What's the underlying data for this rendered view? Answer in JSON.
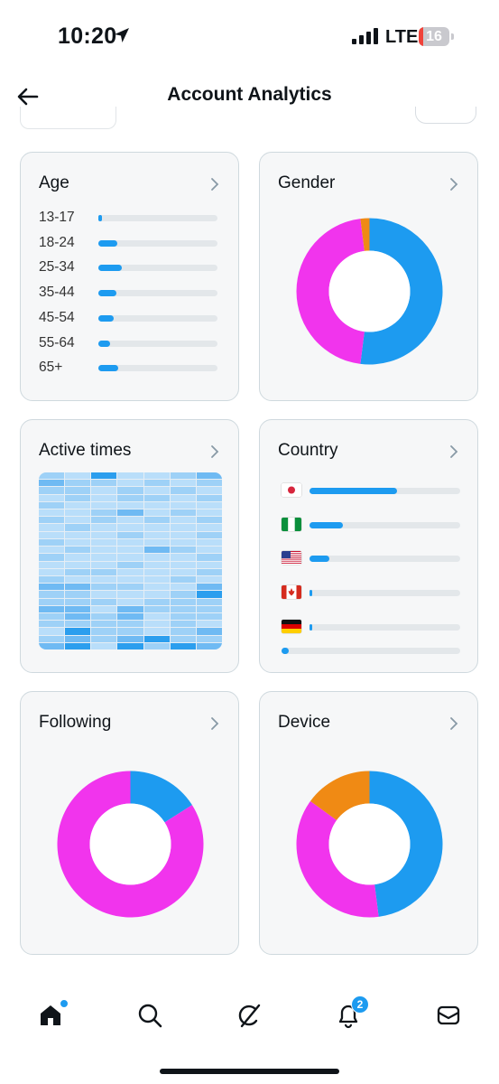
{
  "status_bar": {
    "time": "10:20",
    "network": "LTE",
    "battery": "16"
  },
  "header": {
    "title": "Account Analytics"
  },
  "cards": {
    "age": {
      "title": "Age",
      "rows": [
        {
          "label": "13-17",
          "value": 0.03
        },
        {
          "label": "18-24",
          "value": 0.16
        },
        {
          "label": "25-34",
          "value": 0.2
        },
        {
          "label": "35-44",
          "value": 0.15
        },
        {
          "label": "45-54",
          "value": 0.13
        },
        {
          "label": "55-64",
          "value": 0.1
        },
        {
          "label": "65+",
          "value": 0.17
        }
      ]
    },
    "gender": {
      "title": "Gender",
      "segments": [
        {
          "value": 0.52,
          "color": "#1d9bf0"
        },
        {
          "value": 0.46,
          "color": "#f134ed"
        },
        {
          "value": 0.02,
          "color": "#f08a14"
        }
      ]
    },
    "active_times": {
      "title": "Active times",
      "levels": [
        [
          3,
          2,
          5,
          2,
          2,
          3,
          4
        ],
        [
          4,
          3,
          3,
          2,
          3,
          2,
          3
        ],
        [
          3,
          3,
          2,
          3,
          2,
          3,
          2
        ],
        [
          2,
          3,
          2,
          3,
          3,
          2,
          3
        ],
        [
          3,
          2,
          2,
          2,
          2,
          2,
          2
        ],
        [
          2,
          2,
          3,
          4,
          2,
          3,
          2
        ],
        [
          3,
          2,
          3,
          2,
          3,
          2,
          3
        ],
        [
          2,
          3,
          2,
          2,
          2,
          2,
          2
        ],
        [
          2,
          2,
          2,
          3,
          2,
          2,
          3
        ],
        [
          3,
          2,
          2,
          2,
          2,
          2,
          2
        ],
        [
          2,
          3,
          2,
          2,
          4,
          3,
          2
        ],
        [
          3,
          2,
          2,
          2,
          2,
          2,
          3
        ],
        [
          2,
          2,
          2,
          3,
          2,
          2,
          2
        ],
        [
          2,
          3,
          3,
          2,
          2,
          2,
          3
        ],
        [
          3,
          2,
          2,
          2,
          2,
          3,
          2
        ],
        [
          4,
          4,
          3,
          3,
          2,
          2,
          4
        ],
        [
          3,
          3,
          2,
          2,
          2,
          3,
          5
        ],
        [
          3,
          3,
          3,
          2,
          3,
          3,
          3
        ],
        [
          4,
          4,
          2,
          4,
          3,
          3,
          3
        ],
        [
          3,
          4,
          3,
          4,
          2,
          3,
          3
        ],
        [
          3,
          3,
          3,
          3,
          2,
          3,
          2
        ],
        [
          2,
          5,
          3,
          3,
          2,
          3,
          4
        ],
        [
          3,
          4,
          3,
          4,
          5,
          3,
          3
        ],
        [
          4,
          5,
          2,
          5,
          3,
          5,
          4
        ]
      ]
    },
    "country": {
      "title": "Country",
      "rows": [
        {
          "flag": "japan-flag",
          "value": 0.58
        },
        {
          "flag": "nigeria-flag",
          "value": 0.22
        },
        {
          "flag": "usa-flag",
          "value": 0.13
        },
        {
          "flag": "canada-flag",
          "value": 0.015
        },
        {
          "flag": "germany-flag",
          "value": 0.012
        },
        {
          "flag": "",
          "value": 0.03
        }
      ]
    },
    "following": {
      "title": "Following",
      "segments": [
        {
          "value": 0.16,
          "color": "#1d9bf0"
        },
        {
          "value": 0.84,
          "color": "#f134ed"
        }
      ]
    },
    "device": {
      "title": "Device",
      "segments": [
        {
          "value": 0.48,
          "color": "#1d9bf0"
        },
        {
          "value": 0.37,
          "color": "#f134ed"
        },
        {
          "value": 0.15,
          "color": "#f08a14"
        }
      ]
    }
  },
  "tab_bar": {
    "items": [
      "home-icon",
      "search-icon",
      "grok-icon",
      "notifications-icon",
      "messages-icon"
    ],
    "notifications_badge": "2"
  },
  "colors": {
    "accent": "#1d9bf0",
    "magenta": "#f134ed",
    "orange": "#f08a14",
    "track": "#e3e7ea",
    "heat_levels": [
      "#d6ebfb",
      "#b9defa",
      "#9ed1f7",
      "#6fbaf3",
      "#2b9eee"
    ]
  }
}
